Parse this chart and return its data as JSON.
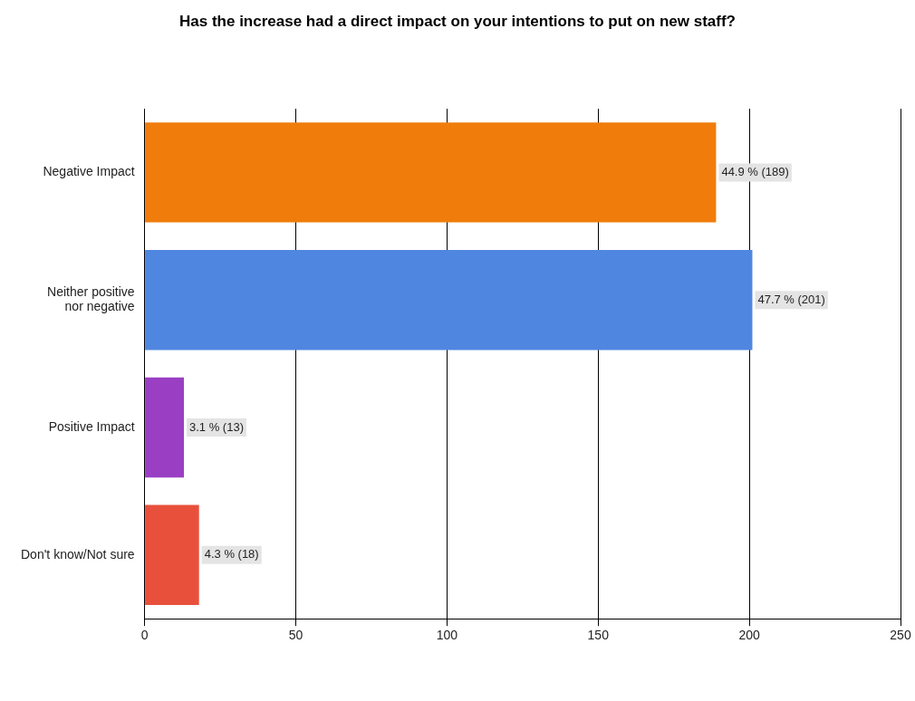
{
  "chart_data": {
    "type": "bar",
    "orientation": "horizontal",
    "title": "Has the increase had a direct impact on your intentions to put on new staff?",
    "categories": [
      "Negative Impact",
      "Neither positive nor negative",
      "Positive Impact",
      "Don't know/Not sure"
    ],
    "values": [
      189,
      201,
      13,
      18
    ],
    "colors": [
      "#f07c0c",
      "#4f86e0",
      "#9a3fc4",
      "#e8503c"
    ],
    "value_labels": [
      "44.9 % (189)",
      "47.7 % (201)",
      "3.1 % (13)",
      "4.3 % (18)"
    ],
    "xlim": [
      0,
      250
    ],
    "xticks": [
      0,
      50,
      100,
      150,
      200,
      250
    ],
    "grid": "x",
    "legend": false
  }
}
